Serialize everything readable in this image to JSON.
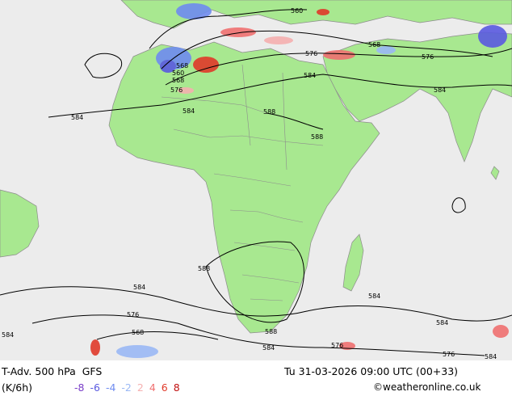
{
  "header": {
    "title": "T-Adv. 500 hPa",
    "model": "GFS",
    "units": "(K/6h)",
    "valid_time": "Tu 31-03-2026 09:00 UTC (00+33)",
    "credit": "©weatheronline.co.uk"
  },
  "scale": [
    {
      "label": "-8",
      "color": "#7a3ec8"
    },
    {
      "label": "-6",
      "color": "#5a5ae0"
    },
    {
      "label": "-4",
      "color": "#6f8cf0"
    },
    {
      "label": "-2",
      "color": "#9ab8f5"
    },
    {
      "label": "2",
      "color": "#f5b0b0"
    },
    {
      "label": "4",
      "color": "#f07070"
    },
    {
      "label": "6",
      "color": "#e03a2a"
    },
    {
      "label": "8",
      "color": "#c01010"
    }
  ],
  "contour_labels": [
    "560",
    "568",
    "576",
    "584",
    "588",
    "560",
    "568",
    "576",
    "584",
    "588",
    "584",
    "576",
    "568",
    "584",
    "588",
    "584",
    "584",
    "576",
    "588",
    "584",
    "584",
    "576",
    "568",
    "584",
    "576",
    "584"
  ],
  "colors": {
    "ocean": "#ececec",
    "land": "#a8e890",
    "contour": "#000000",
    "border": "#8c8c8c"
  }
}
